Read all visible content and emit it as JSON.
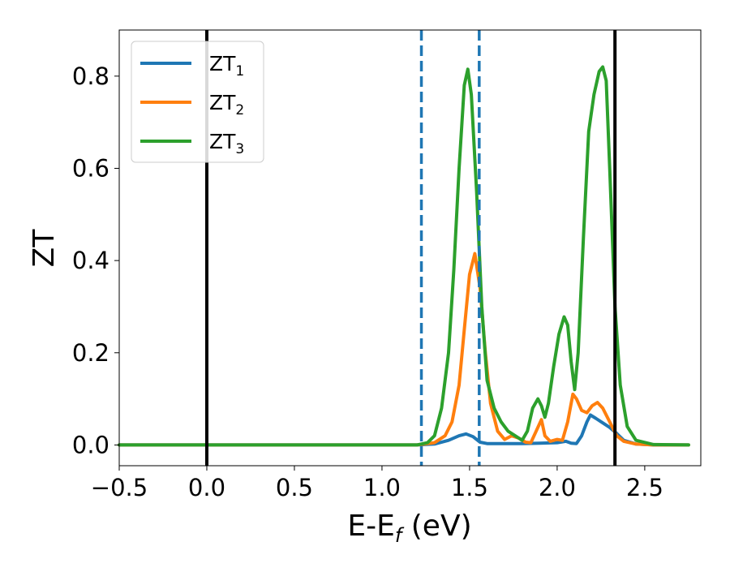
{
  "chart_data": {
    "type": "line",
    "xlabel": "E-E",
    "xlabel_subscript": "f",
    "xlabel_unit": " (eV)",
    "ylabel": "ZT",
    "xlim": [
      -0.5,
      2.82
    ],
    "ylim": [
      -0.045,
      0.9
    ],
    "x_ticks": [
      -0.5,
      0.0,
      0.5,
      1.0,
      1.5,
      2.0,
      2.5
    ],
    "x_tick_labels": [
      "−0.5",
      "0.0",
      "0.5",
      "1.0",
      "1.5",
      "2.0",
      "2.5"
    ],
    "y_ticks": [
      0.0,
      0.2,
      0.4,
      0.6,
      0.8
    ],
    "y_tick_labels": [
      "0.0",
      "0.2",
      "0.4",
      "0.6",
      "0.8"
    ],
    "grid": false,
    "legend_position": "top-left",
    "vertical_lines": [
      {
        "x": 0.0,
        "style": "solid",
        "color": "#000000"
      },
      {
        "x": 2.33,
        "style": "solid",
        "color": "#000000"
      },
      {
        "x": 1.225,
        "style": "dashed",
        "color": "#1f77b4"
      },
      {
        "x": 1.555,
        "style": "dashed",
        "color": "#1f77b4"
      }
    ],
    "series": [
      {
        "name": "ZT",
        "subscript": "1",
        "color": "#1f77b4",
        "points": [
          [
            -0.5,
            0
          ],
          [
            1.2,
            0
          ],
          [
            1.3,
            0.002
          ],
          [
            1.38,
            0.01
          ],
          [
            1.44,
            0.02
          ],
          [
            1.48,
            0.024
          ],
          [
            1.52,
            0.018
          ],
          [
            1.56,
            0.006
          ],
          [
            1.6,
            0.003
          ],
          [
            1.7,
            0.003
          ],
          [
            1.8,
            0.003
          ],
          [
            1.9,
            0.004
          ],
          [
            2.0,
            0.005
          ],
          [
            2.05,
            0.008
          ],
          [
            2.08,
            0.004
          ],
          [
            2.11,
            0.003
          ],
          [
            2.14,
            0.02
          ],
          [
            2.17,
            0.05
          ],
          [
            2.19,
            0.065
          ],
          [
            2.22,
            0.058
          ],
          [
            2.26,
            0.048
          ],
          [
            2.3,
            0.038
          ],
          [
            2.34,
            0.025
          ],
          [
            2.38,
            0.01
          ],
          [
            2.45,
            0.002
          ],
          [
            2.55,
            0
          ],
          [
            2.75,
            0
          ]
        ]
      },
      {
        "name": "ZT",
        "subscript": "2",
        "color": "#ff7f0e",
        "points": [
          [
            -0.5,
            0
          ],
          [
            1.2,
            0
          ],
          [
            1.3,
            0.005
          ],
          [
            1.36,
            0.02
          ],
          [
            1.4,
            0.05
          ],
          [
            1.44,
            0.13
          ],
          [
            1.47,
            0.25
          ],
          [
            1.5,
            0.37
          ],
          [
            1.53,
            0.415
          ],
          [
            1.56,
            0.34
          ],
          [
            1.59,
            0.2
          ],
          [
            1.62,
            0.09
          ],
          [
            1.66,
            0.03
          ],
          [
            1.7,
            0.012
          ],
          [
            1.74,
            0.02
          ],
          [
            1.78,
            0.015
          ],
          [
            1.82,
            0.006
          ],
          [
            1.85,
            0.005
          ],
          [
            1.88,
            0.03
          ],
          [
            1.91,
            0.055
          ],
          [
            1.93,
            0.02
          ],
          [
            1.96,
            0.008
          ],
          [
            2.0,
            0.012
          ],
          [
            2.03,
            0.01
          ],
          [
            2.06,
            0.05
          ],
          [
            2.09,
            0.11
          ],
          [
            2.11,
            0.1
          ],
          [
            2.14,
            0.075
          ],
          [
            2.17,
            0.07
          ],
          [
            2.2,
            0.085
          ],
          [
            2.23,
            0.092
          ],
          [
            2.26,
            0.08
          ],
          [
            2.3,
            0.05
          ],
          [
            2.34,
            0.02
          ],
          [
            2.38,
            0.008
          ],
          [
            2.45,
            0.002
          ],
          [
            2.55,
            0
          ],
          [
            2.75,
            0
          ]
        ]
      },
      {
        "name": "ZT",
        "subscript": "3",
        "color": "#2ca02c",
        "points": [
          [
            -0.5,
            0
          ],
          [
            1.2,
            0
          ],
          [
            1.26,
            0.005
          ],
          [
            1.3,
            0.02
          ],
          [
            1.34,
            0.08
          ],
          [
            1.38,
            0.2
          ],
          [
            1.41,
            0.38
          ],
          [
            1.44,
            0.6
          ],
          [
            1.47,
            0.78
          ],
          [
            1.49,
            0.815
          ],
          [
            1.51,
            0.76
          ],
          [
            1.54,
            0.55
          ],
          [
            1.57,
            0.3
          ],
          [
            1.6,
            0.14
          ],
          [
            1.64,
            0.08
          ],
          [
            1.68,
            0.05
          ],
          [
            1.72,
            0.03
          ],
          [
            1.76,
            0.02
          ],
          [
            1.8,
            0.01
          ],
          [
            1.83,
            0.03
          ],
          [
            1.86,
            0.08
          ],
          [
            1.89,
            0.1
          ],
          [
            1.91,
            0.085
          ],
          [
            1.93,
            0.06
          ],
          [
            1.95,
            0.09
          ],
          [
            1.98,
            0.17
          ],
          [
            2.01,
            0.24
          ],
          [
            2.04,
            0.278
          ],
          [
            2.06,
            0.26
          ],
          [
            2.08,
            0.18
          ],
          [
            2.1,
            0.12
          ],
          [
            2.12,
            0.2
          ],
          [
            2.15,
            0.45
          ],
          [
            2.18,
            0.68
          ],
          [
            2.21,
            0.76
          ],
          [
            2.24,
            0.81
          ],
          [
            2.26,
            0.82
          ],
          [
            2.28,
            0.79
          ],
          [
            2.3,
            0.6
          ],
          [
            2.33,
            0.3
          ],
          [
            2.36,
            0.13
          ],
          [
            2.4,
            0.04
          ],
          [
            2.45,
            0.01
          ],
          [
            2.55,
            0.001
          ],
          [
            2.75,
            0
          ]
        ]
      }
    ]
  }
}
